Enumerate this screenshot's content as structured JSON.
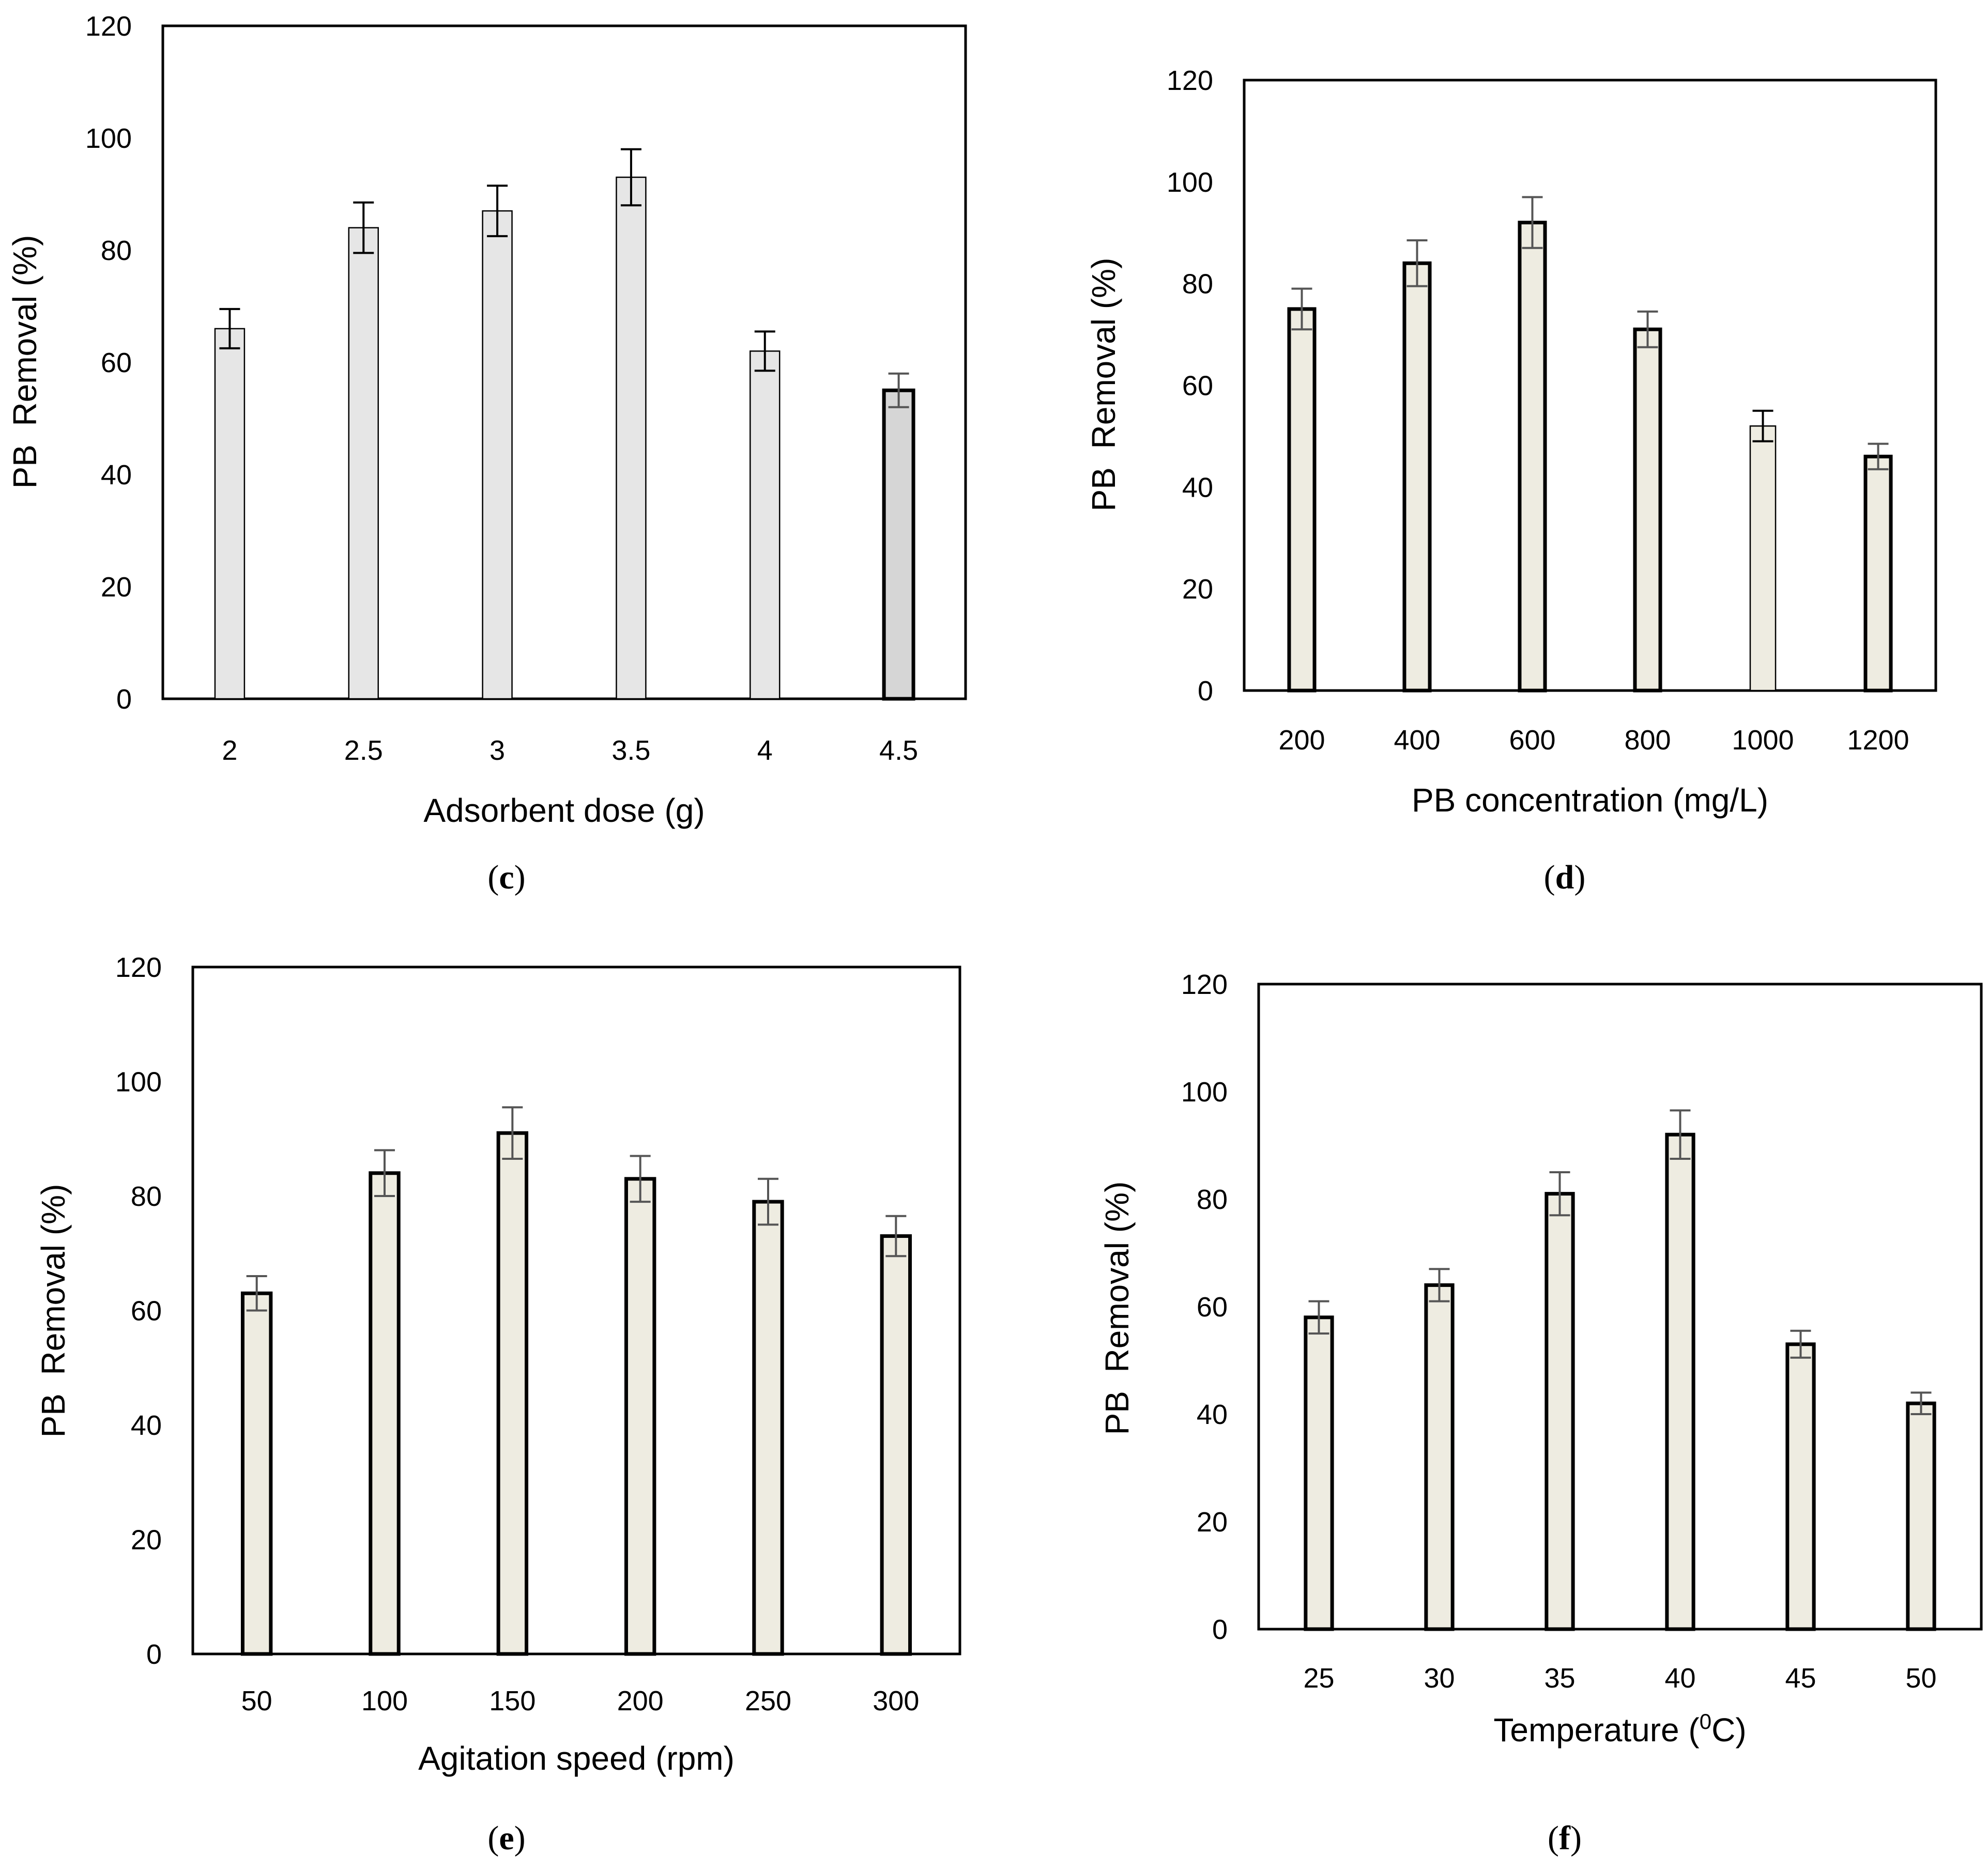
{
  "figure": {
    "panels": [
      {
        "id": "c",
        "label": "c"
      },
      {
        "id": "d",
        "label": "d"
      },
      {
        "id": "e",
        "label": "e"
      },
      {
        "id": "f",
        "label": "f"
      }
    ]
  },
  "chart_data": [
    {
      "panel": "c",
      "type": "bar",
      "title": "",
      "xlabel": "Adsorbent dose (g)",
      "ylabel": "PB  Removal (%)",
      "ylim": [
        0,
        120
      ],
      "yticks": [
        0,
        20,
        40,
        60,
        80,
        100,
        120
      ],
      "categories": [
        "2",
        "2.5",
        "3",
        "3.5",
        "4",
        "4.5"
      ],
      "series": [
        {
          "name": "PB Removal",
          "values": [
            66,
            84,
            87,
            93,
            62,
            55
          ],
          "errors": [
            3.5,
            4.5,
            4.5,
            5,
            3.5,
            3
          ]
        }
      ],
      "bar_colors": [
        "#e6e6e6",
        "#e6e6e6",
        "#e6e6e6",
        "#e6e6e6",
        "#e6e6e6",
        "#d6d6d6"
      ],
      "bar_emphasis": [
        false,
        false,
        false,
        false,
        false,
        true
      ],
      "legend": "none",
      "grid": false
    },
    {
      "panel": "d",
      "type": "bar",
      "title": "",
      "xlabel": "PB concentration (mg/L)",
      "ylabel": "PB  Removal (%)",
      "ylim": [
        0,
        120
      ],
      "yticks": [
        0,
        20,
        40,
        60,
        80,
        100,
        120
      ],
      "categories": [
        "200",
        "400",
        "600",
        "800",
        "1000",
        "1200"
      ],
      "series": [
        {
          "name": "PB Removal",
          "values": [
            75,
            84,
            92,
            71,
            52,
            46
          ],
          "errors": [
            4,
            4.5,
            5,
            3.5,
            3,
            2.5
          ]
        }
      ],
      "bar_colors": [
        "#eeece1",
        "#eeece1",
        "#eeece1",
        "#eeece1",
        "#eeece1",
        "#eeece1"
      ],
      "bar_emphasis": [
        true,
        true,
        true,
        true,
        false,
        true
      ],
      "legend": "none",
      "grid": false
    },
    {
      "panel": "e",
      "type": "bar",
      "title": "",
      "xlabel": "Agitation speed (rpm)",
      "ylabel": "PB  Removal (%)",
      "ylim": [
        0,
        120
      ],
      "yticks": [
        0,
        20,
        40,
        60,
        80,
        100,
        120
      ],
      "categories": [
        "50",
        "100",
        "150",
        "200",
        "250",
        "300"
      ],
      "series": [
        {
          "name": "PB Removal",
          "values": [
            63,
            84,
            91,
            83,
            79,
            73
          ],
          "errors": [
            3,
            4,
            4.5,
            4,
            4,
            3.5
          ]
        }
      ],
      "bar_colors": [
        "#eeece1",
        "#eeece1",
        "#eeece1",
        "#eeece1",
        "#eeece1",
        "#eeece1"
      ],
      "bar_emphasis": [
        true,
        true,
        true,
        true,
        true,
        true
      ],
      "legend": "none",
      "grid": false
    },
    {
      "panel": "f",
      "type": "bar",
      "title": "",
      "xlabel": "Temperature (0C)",
      "ylabel": "PB  Removal (%)",
      "ylim": [
        0,
        120
      ],
      "yticks": [
        0,
        20,
        40,
        60,
        80,
        100,
        120
      ],
      "categories": [
        "25",
        "30",
        "35",
        "40",
        "45",
        "50"
      ],
      "series": [
        {
          "name": "PB Removal",
          "values": [
            58,
            64,
            81,
            92,
            53,
            42
          ],
          "errors": [
            3,
            3,
            4,
            4.5,
            2.5,
            2
          ]
        }
      ],
      "bar_colors": [
        "#eeece1",
        "#eeece1",
        "#eeece1",
        "#eeece1",
        "#eeece1",
        "#eeece1"
      ],
      "bar_emphasis": [
        true,
        true,
        true,
        true,
        true,
        true
      ],
      "legend": "none",
      "grid": false
    }
  ]
}
